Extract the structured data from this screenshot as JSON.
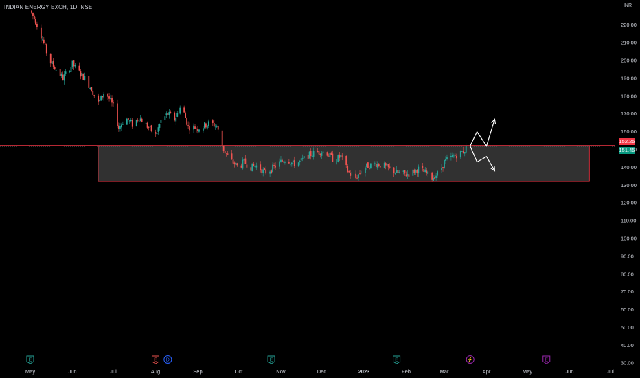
{
  "header": {
    "symbol_title": "INDIAN ENERGY EXCH, 1D, NSE",
    "currency": "INR"
  },
  "price_tags": {
    "upper": "152.25",
    "lower": "151.45",
    "upper_color": "#f23645",
    "lower_color": "#089981"
  },
  "colors": {
    "up": "#26a69a",
    "down": "#ef5350",
    "zone_fill": "#3a3a3a",
    "zone_border": "#f23645",
    "projection": "#ffffff",
    "earnings": "#26a69a",
    "earnings_red": "#ef5350",
    "dividend": "#2962ff",
    "split": "#9c27b0"
  },
  "chart_data": {
    "type": "candlestick",
    "title": "INDIAN ENERGY EXCH, 1D, NSE",
    "currency": "INR",
    "ylim": [
      27,
      234
    ],
    "y_ticks": [
      "30.00",
      "40.00",
      "50.00",
      "60.00",
      "70.00",
      "80.00",
      "90.00",
      "100.00",
      "110.00",
      "120.00",
      "130.00",
      "140.00",
      "150.00",
      "160.00",
      "170.00",
      "180.00",
      "190.00",
      "200.00",
      "210.00",
      "220.00"
    ],
    "x_labels": [
      "May",
      "Jun",
      "Jul",
      "Aug",
      "Sep",
      "Oct",
      "Nov",
      "Dec",
      "2023",
      "Feb",
      "Mar",
      "Apr",
      "May",
      "Jun",
      "Jul"
    ],
    "x_label_bold": "2023",
    "price_path": [
      [
        "2022-05-01",
        228
      ],
      [
        "2022-05-05",
        222
      ],
      [
        "2022-05-10",
        212
      ],
      [
        "2022-05-15",
        200
      ],
      [
        "2022-05-20",
        195
      ],
      [
        "2022-05-25",
        190
      ],
      [
        "2022-06-01",
        198
      ],
      [
        "2022-06-05",
        194
      ],
      [
        "2022-06-10",
        190
      ],
      [
        "2022-06-15",
        184
      ],
      [
        "2022-06-20",
        176
      ],
      [
        "2022-06-25",
        183
      ],
      [
        "2022-07-01",
        174
      ],
      [
        "2022-07-05",
        162
      ],
      [
        "2022-07-10",
        168
      ],
      [
        "2022-07-15",
        164
      ],
      [
        "2022-07-20",
        168
      ],
      [
        "2022-07-25",
        164
      ],
      [
        "2022-08-01",
        158
      ],
      [
        "2022-08-05",
        166
      ],
      [
        "2022-08-10",
        170
      ],
      [
        "2022-08-15",
        167
      ],
      [
        "2022-08-20",
        175
      ],
      [
        "2022-08-25",
        163
      ],
      [
        "2022-09-01",
        162
      ],
      [
        "2022-09-05",
        163
      ],
      [
        "2022-09-10",
        165
      ],
      [
        "2022-09-15",
        163
      ],
      [
        "2022-09-20",
        150
      ],
      [
        "2022-09-25",
        144
      ],
      [
        "2022-10-01",
        140
      ],
      [
        "2022-10-05",
        143
      ],
      [
        "2022-10-10",
        140
      ],
      [
        "2022-10-15",
        141
      ],
      [
        "2022-10-20",
        137
      ],
      [
        "2022-10-25",
        139
      ],
      [
        "2022-11-01",
        143
      ],
      [
        "2022-11-05",
        145
      ],
      [
        "2022-11-10",
        142
      ],
      [
        "2022-11-15",
        143
      ],
      [
        "2022-11-20",
        146
      ],
      [
        "2022-11-25",
        148
      ],
      [
        "2022-12-01",
        149
      ],
      [
        "2022-12-05",
        148
      ],
      [
        "2022-12-10",
        144
      ],
      [
        "2022-12-15",
        146
      ],
      [
        "2022-12-20",
        138
      ],
      [
        "2022-12-25",
        133
      ],
      [
        "2023-01-01",
        140
      ],
      [
        "2023-01-05",
        141
      ],
      [
        "2023-01-10",
        142
      ],
      [
        "2023-01-15",
        141
      ],
      [
        "2023-01-20",
        139
      ],
      [
        "2023-01-25",
        137
      ],
      [
        "2023-02-01",
        136
      ],
      [
        "2023-02-05",
        137
      ],
      [
        "2023-02-10",
        139
      ],
      [
        "2023-02-15",
        137
      ],
      [
        "2023-02-20",
        134
      ],
      [
        "2023-02-25",
        137
      ],
      [
        "2023-03-01",
        143
      ],
      [
        "2023-03-05",
        145
      ],
      [
        "2023-03-10",
        147
      ],
      [
        "2023-03-15",
        149
      ],
      [
        "2023-03-18",
        151.45
      ]
    ],
    "annotations": [
      {
        "label": "consolidation zone",
        "from": "2022-07-01",
        "to": "2023-06-12",
        "low": 132,
        "high": 152
      },
      {
        "label": "breakout path",
        "points": [
          [
            "2023-03-20",
            152
          ],
          [
            "2023-03-25",
            160
          ],
          [
            "2023-04-01",
            152
          ],
          [
            "2023-04-07",
            167
          ]
        ]
      },
      {
        "label": "breakdown path",
        "points": [
          [
            "2023-03-20",
            152
          ],
          [
            "2023-03-25",
            143
          ],
          [
            "2023-04-01",
            146
          ],
          [
            "2023-04-07",
            138
          ]
        ]
      }
    ],
    "events": [
      {
        "type": "earnings",
        "date": "2022-05-01",
        "letter": "E"
      },
      {
        "type": "earnings",
        "date": "2022-08-01",
        "letter": "E"
      },
      {
        "type": "dividend",
        "date": "2022-08-10",
        "letter": "D"
      },
      {
        "type": "earnings",
        "date": "2022-10-25",
        "letter": "E"
      },
      {
        "type": "earnings",
        "date": "2023-01-25",
        "letter": "E"
      },
      {
        "type": "split",
        "date": "2023-03-20",
        "letter": "⚡"
      },
      {
        "type": "earnings",
        "date": "2023-05-15",
        "letter": "E"
      }
    ],
    "grid": false
  }
}
